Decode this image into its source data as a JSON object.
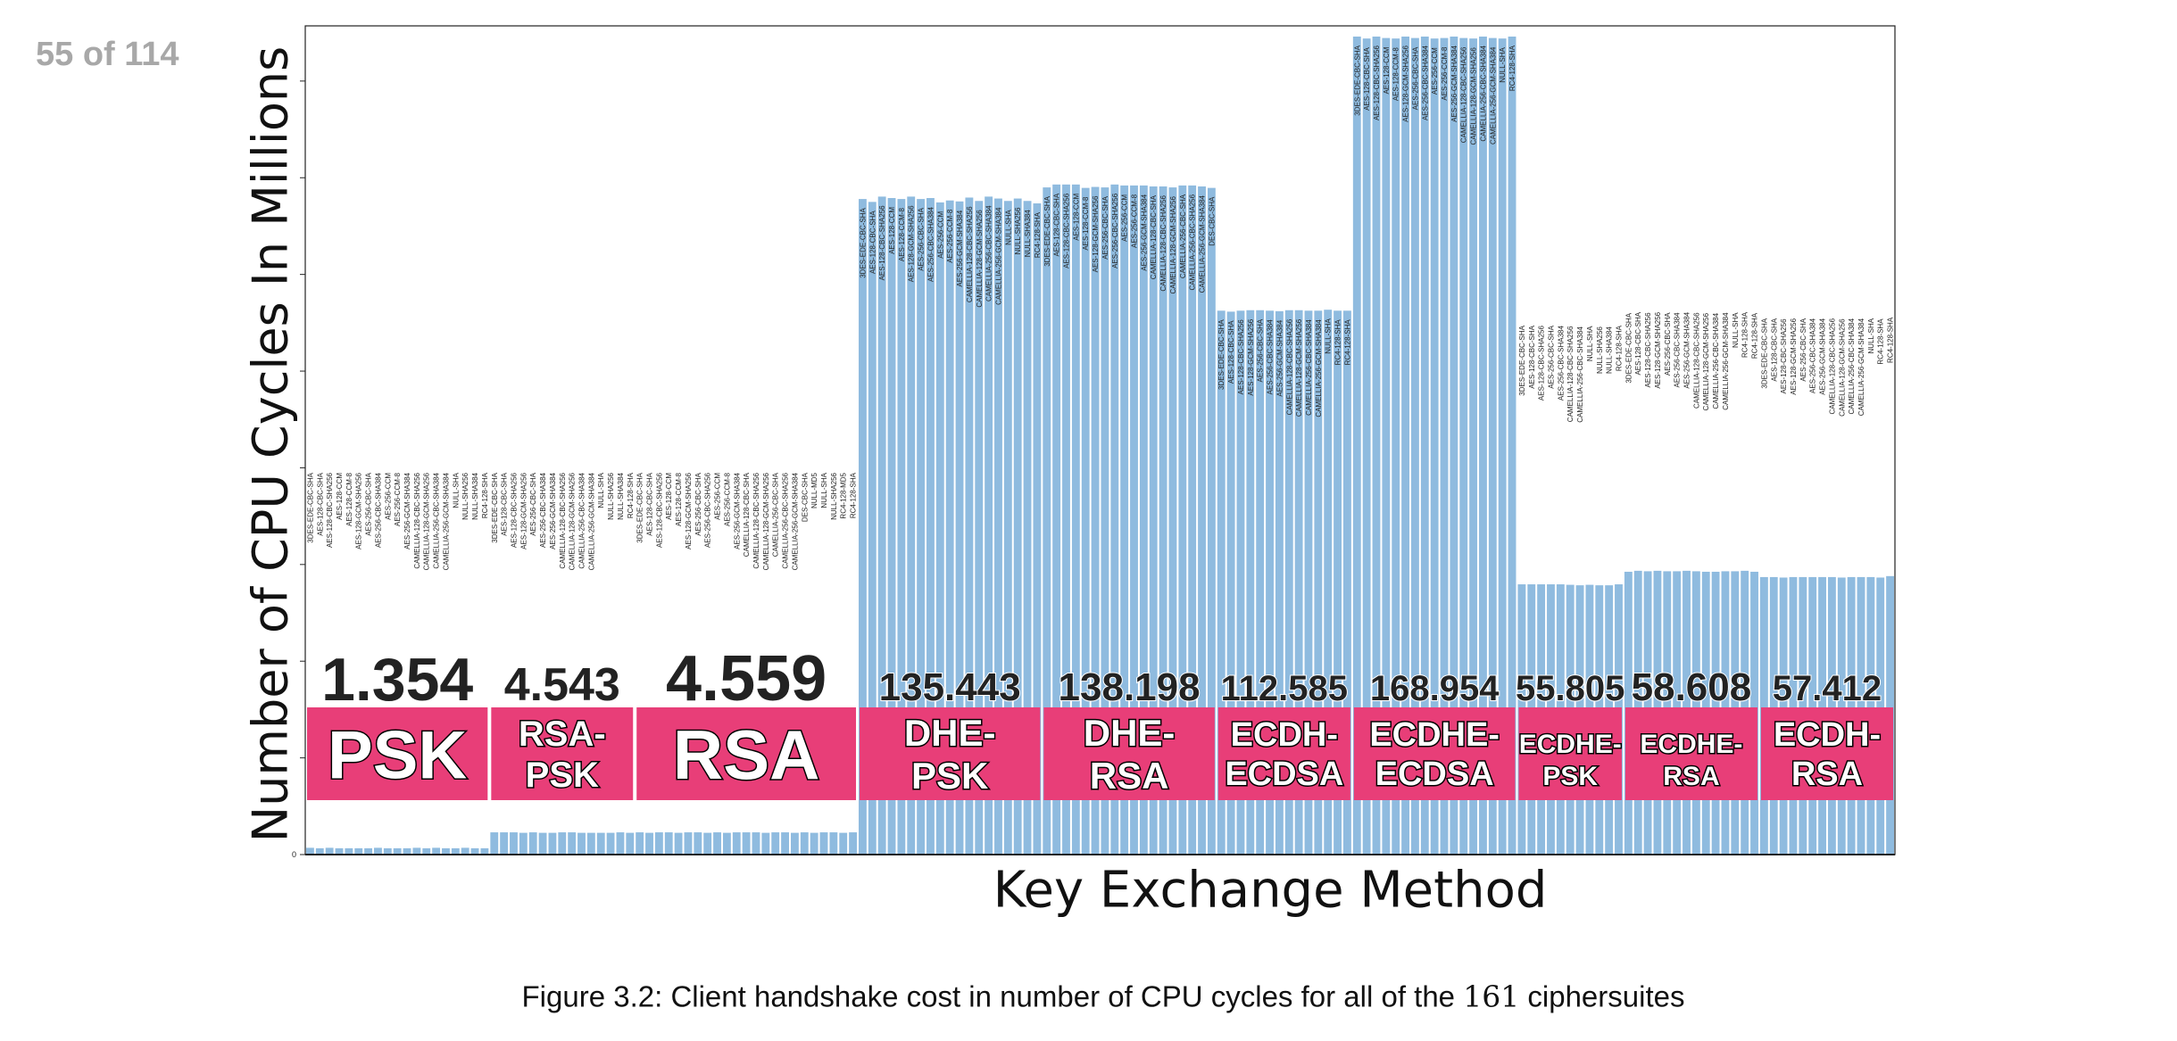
{
  "page_indicator": "55 of 114",
  "caption": {
    "prefix": "Figure 3.2: Client handshake cost in number of CPU cycles for all of the ",
    "count": "161",
    "suffix": " ciphersuites"
  },
  "chart_data": {
    "type": "bar",
    "title": "",
    "xlabel": "Key Exchange Method",
    "ylabel": "Number of CPU Cycles In Millions",
    "ylim": [
      0,
      169.2
    ],
    "yticks": [
      0,
      20,
      40,
      60,
      80,
      100,
      120,
      140,
      160
    ],
    "ytick_labels": [
      "0"
    ],
    "grid": false,
    "colors": {
      "bar": "#8fbbdf",
      "band": "#e83e78"
    },
    "groups": [
      {
        "name": "PSK",
        "label_lines": [
          "PSK"
        ],
        "value_label": "1.354",
        "suites": [
          "3DES-EDE-CBC-SHA",
          "AES-128-CBC-SHA",
          "AES-128-CBC-SHA256",
          "AES-128-CCM",
          "AES-128-CCM-8",
          "AES-128-GCM-SHA256",
          "AES-256-CBC-SHA",
          "AES-256-CBC-SHA384",
          "AES-256-CCM",
          "AES-256-CCM-8",
          "AES-256-GCM-SHA384",
          "CAMELLIA-128-CBC-SHA256",
          "CAMELLIA-128-GCM-SHA256",
          "CAMELLIA-256-CBC-SHA384",
          "CAMELLIA-256-GCM-SHA384",
          "NULL-SHA",
          "NULL-SHA256",
          "NULL-SHA384",
          "RC4-128-SHA"
        ],
        "values": [
          1.4,
          1.3,
          1.4,
          1.3,
          1.3,
          1.3,
          1.3,
          1.4,
          1.3,
          1.3,
          1.3,
          1.4,
          1.3,
          1.4,
          1.3,
          1.3,
          1.4,
          1.3,
          1.3
        ]
      },
      {
        "name": "RSA-PSK",
        "label_lines": [
          "RSA-",
          "PSK"
        ],
        "value_label": "4.543",
        "suites": [
          "3DES-EDE-CBC-SHA",
          "AES-128-CBC-SHA",
          "AES-128-CBC-SHA256",
          "AES-128-GCM-SHA256",
          "AES-256-CBC-SHA",
          "AES-256-CBC-SHA384",
          "AES-256-GCM-SHA384",
          "CAMELLIA-128-CBC-SHA256",
          "CAMELLIA-128-GCM-SHA256",
          "CAMELLIA-256-CBC-SHA384",
          "CAMELLIA-256-GCM-SHA384",
          "NULL-SHA",
          "NULL-SHA256",
          "NULL-SHA384",
          "RC4-128-SHA"
        ],
        "values": [
          4.6,
          4.6,
          4.6,
          4.5,
          4.6,
          4.5,
          4.5,
          4.6,
          4.6,
          4.5,
          4.5,
          4.5,
          4.5,
          4.6,
          4.5
        ]
      },
      {
        "name": "RSA",
        "label_lines": [
          "RSA"
        ],
        "value_label": "4.559",
        "suites": [
          "3DES-EDE-CBC-SHA",
          "AES-128-CBC-SHA",
          "AES-128-CBC-SHA256",
          "AES-128-CCM",
          "AES-128-CCM-8",
          "AES-128-GCM-SHA256",
          "AES-256-CBC-SHA",
          "AES-256-CBC-SHA256",
          "AES-256-CCM",
          "AES-256-CCM-8",
          "AES-256-GCM-SHA384",
          "CAMELLIA-128-CBC-SHA",
          "CAMELLIA-128-CBC-SHA256",
          "CAMELLIA-128-GCM-SHA256",
          "CAMELLIA-256-CBC-SHA",
          "CAMELLIA-256-CBC-SHA256",
          "CAMELLIA-256-GCM-SHA384",
          "DES-CBC-SHA",
          "NULL-MD5",
          "NULL-SHA",
          "NULL-SHA256",
          "RC4-128-MD5",
          "RC4-128-SHA"
        ],
        "values": [
          4.6,
          4.5,
          4.6,
          4.6,
          4.5,
          4.6,
          4.6,
          4.5,
          4.6,
          4.5,
          4.6,
          4.6,
          4.6,
          4.5,
          4.6,
          4.6,
          4.5,
          4.6,
          4.5,
          4.6,
          4.6,
          4.5,
          4.6
        ]
      },
      {
        "name": "DHE-PSK",
        "label_lines": [
          "DHE-",
          "PSK"
        ],
        "value_label": "135.443",
        "suites": [
          "3DES-EDE-CBC-SHA",
          "AES-128-CBC-SHA",
          "AES-128-CBC-SHA256",
          "AES-128-CCM",
          "AES-128-CCM-8",
          "AES-128-GCM-SHA256",
          "AES-256-CBC-SHA",
          "AES-256-CBC-SHA384",
          "AES-256-CCM",
          "AES-256-CCM-8",
          "AES-256-GCM-SHA384",
          "CAMELLIA-128-CBC-SHA256",
          "CAMELLIA-128-GCM-SHA256",
          "CAMELLIA-256-CBC-SHA384",
          "CAMELLIA-256-GCM-SHA384",
          "NULL-SHA",
          "NULL-SHA256",
          "NULL-SHA384",
          "RC4-128-SHA"
        ],
        "values": [
          135.6,
          135.0,
          136.1,
          135.8,
          135.6,
          136.1,
          135.6,
          135.8,
          134.9,
          135.3,
          135.1,
          135.9,
          135.2,
          136.1,
          135.7,
          135.2,
          135.7,
          135.2,
          134.7
        ]
      },
      {
        "name": "DHE-RSA",
        "label_lines": [
          "DHE-",
          "RSA"
        ],
        "value_label": "138.198",
        "suites": [
          "3DES-EDE-CBC-SHA",
          "AES-128-CBC-SHA",
          "AES-128-CBC-SHA256",
          "AES-128-CCM",
          "AES-128-CCM-8",
          "AES-128-GCM-SHA256",
          "AES-256-CBC-SHA",
          "AES-256-CBC-SHA256",
          "AES-256-CCM",
          "AES-256-CCM-8",
          "AES-256-GCM-SHA384",
          "CAMELLIA-128-CBC-SHA",
          "CAMELLIA-128-CBC-SHA256",
          "CAMELLIA-128-GCM-SHA256",
          "CAMELLIA-256-CBC-SHA",
          "CAMELLIA-256-CBC-SHA256",
          "CAMELLIA-256-GCM-SHA384",
          "DES-CBC-SHA"
        ],
        "values": [
          138.0,
          138.6,
          138.6,
          138.6,
          137.9,
          138.1,
          138.0,
          138.6,
          138.4,
          138.4,
          138.4,
          138.2,
          138.2,
          138.0,
          138.4,
          138.4,
          138.2,
          137.9
        ]
      },
      {
        "name": "ECDH-ECDSA",
        "label_lines": [
          "ECDH-",
          "ECDSA"
        ],
        "value_label": "112.585",
        "suites": [
          "3DES-EDE-CBC-SHA",
          "AES-128-CBC-SHA",
          "AES-128-CBC-SHA256",
          "AES-128-GCM-SHA256",
          "AES-256-CBC-SHA",
          "AES-256-CBC-SHA384",
          "AES-256-GCM-SHA384",
          "CAMELLIA-128-CBC-SHA256",
          "CAMELLIA-128-GCM-SHA256",
          "CAMELLIA-256-CBC-SHA384",
          "CAMELLIA-256-GCM-SHA384",
          "NULL-SHA",
          "RC4-128-SHA",
          "RC4-128-SHA"
        ],
        "values": [
          112.5,
          112.3,
          112.5,
          112.6,
          112.6,
          112.5,
          112.4,
          112.6,
          112.6,
          112.5,
          112.5,
          112.7,
          112.5,
          112.5
        ]
      },
      {
        "name": "ECDHE-ECDSA",
        "label_lines": [
          "ECDHE-",
          "ECDSA"
        ],
        "value_label": "168.954",
        "suites": [
          "3DES-EDE-CBC-SHA",
          "AES-128-CBC-SHA",
          "AES-128-CBC-SHA256",
          "AES-128-CCM",
          "AES-128-CCM-8",
          "AES-128-GCM-SHA256",
          "AES-256-CBC-SHA",
          "AES-256-CBC-SHA384",
          "AES-256-CCM",
          "AES-256-CCM-8",
          "AES-256-GCM-SHA384",
          "CAMELLIA-128-CBC-SHA256",
          "CAMELLIA-128-GCM-SHA256",
          "CAMELLIA-256-CBC-SHA384",
          "CAMELLIA-256-GCM-SHA384",
          "NULL-SHA",
          "RC4-128-SHA"
        ],
        "values": [
          169.2,
          168.8,
          169.2,
          168.9,
          168.8,
          169.2,
          168.9,
          169.2,
          168.8,
          168.9,
          169.2,
          168.9,
          168.8,
          169.2,
          168.9,
          168.8,
          169.2
        ]
      },
      {
        "name": "ECDHE-PSK",
        "label_lines": [
          "ECDHE-",
          "PSK"
        ],
        "value_label": "55.805",
        "suites": [
          "3DES-EDE-CBC-SHA",
          "AES-128-CBC-SHA",
          "AES-128-CBC-SHA256",
          "AES-256-CBC-SHA",
          "AES-256-CBC-SHA384",
          "CAMELLIA-128-CBC-SHA256",
          "CAMELLIA-256-CBC-SHA384",
          "NULL-SHA",
          "NULL-SHA256",
          "NULL-SHA384",
          "RC4-128-SHA"
        ],
        "values": [
          55.9,
          55.9,
          55.9,
          55.9,
          55.9,
          55.8,
          55.7,
          55.8,
          55.7,
          55.7,
          55.9
        ]
      },
      {
        "name": "ECDHE-RSA",
        "label_lines": [
          "ECDHE-",
          "RSA"
        ],
        "value_label": "58.608",
        "suites": [
          "3DES-EDE-CBC-SHA",
          "AES-128-CBC-SHA",
          "AES-128-CBC-SHA256",
          "AES-128-GCM-SHA256",
          "AES-256-CBC-SHA",
          "AES-256-CBC-SHA384",
          "AES-256-GCM-SHA384",
          "CAMELLIA-128-CBC-SHA256",
          "CAMELLIA-128-GCM-SHA256",
          "CAMELLIA-256-CBC-SHA384",
          "CAMELLIA-256-GCM-SHA384",
          "NULL-SHA",
          "RC4-128-SHA",
          "RC4-128-SHA"
        ],
        "values": [
          58.5,
          58.7,
          58.6,
          58.7,
          58.6,
          58.6,
          58.7,
          58.6,
          58.5,
          58.5,
          58.6,
          58.6,
          58.7,
          58.5
        ]
      },
      {
        "name": "ECDH-RSA",
        "label_lines": [
          "ECDH-",
          "RSA"
        ],
        "value_label": "57.412",
        "suites": [
          "3DES-EDE-CBC-SHA",
          "AES-128-CBC-SHA",
          "AES-128-CBC-SHA256",
          "AES-128-GCM-SHA256",
          "AES-256-CBC-SHA",
          "AES-256-CBC-SHA384",
          "AES-256-GCM-SHA384",
          "CAMELLIA-128-CBC-SHA256",
          "CAMELLIA-128-GCM-SHA256",
          "CAMELLIA-256-CBC-SHA384",
          "CAMELLIA-256-GCM-SHA384",
          "NULL-SHA",
          "RC4-128-SHA",
          "RC4-128-SHA"
        ],
        "values": [
          57.4,
          57.4,
          57.3,
          57.4,
          57.4,
          57.4,
          57.4,
          57.4,
          57.3,
          57.4,
          57.4,
          57.4,
          57.3,
          57.6
        ]
      }
    ]
  }
}
